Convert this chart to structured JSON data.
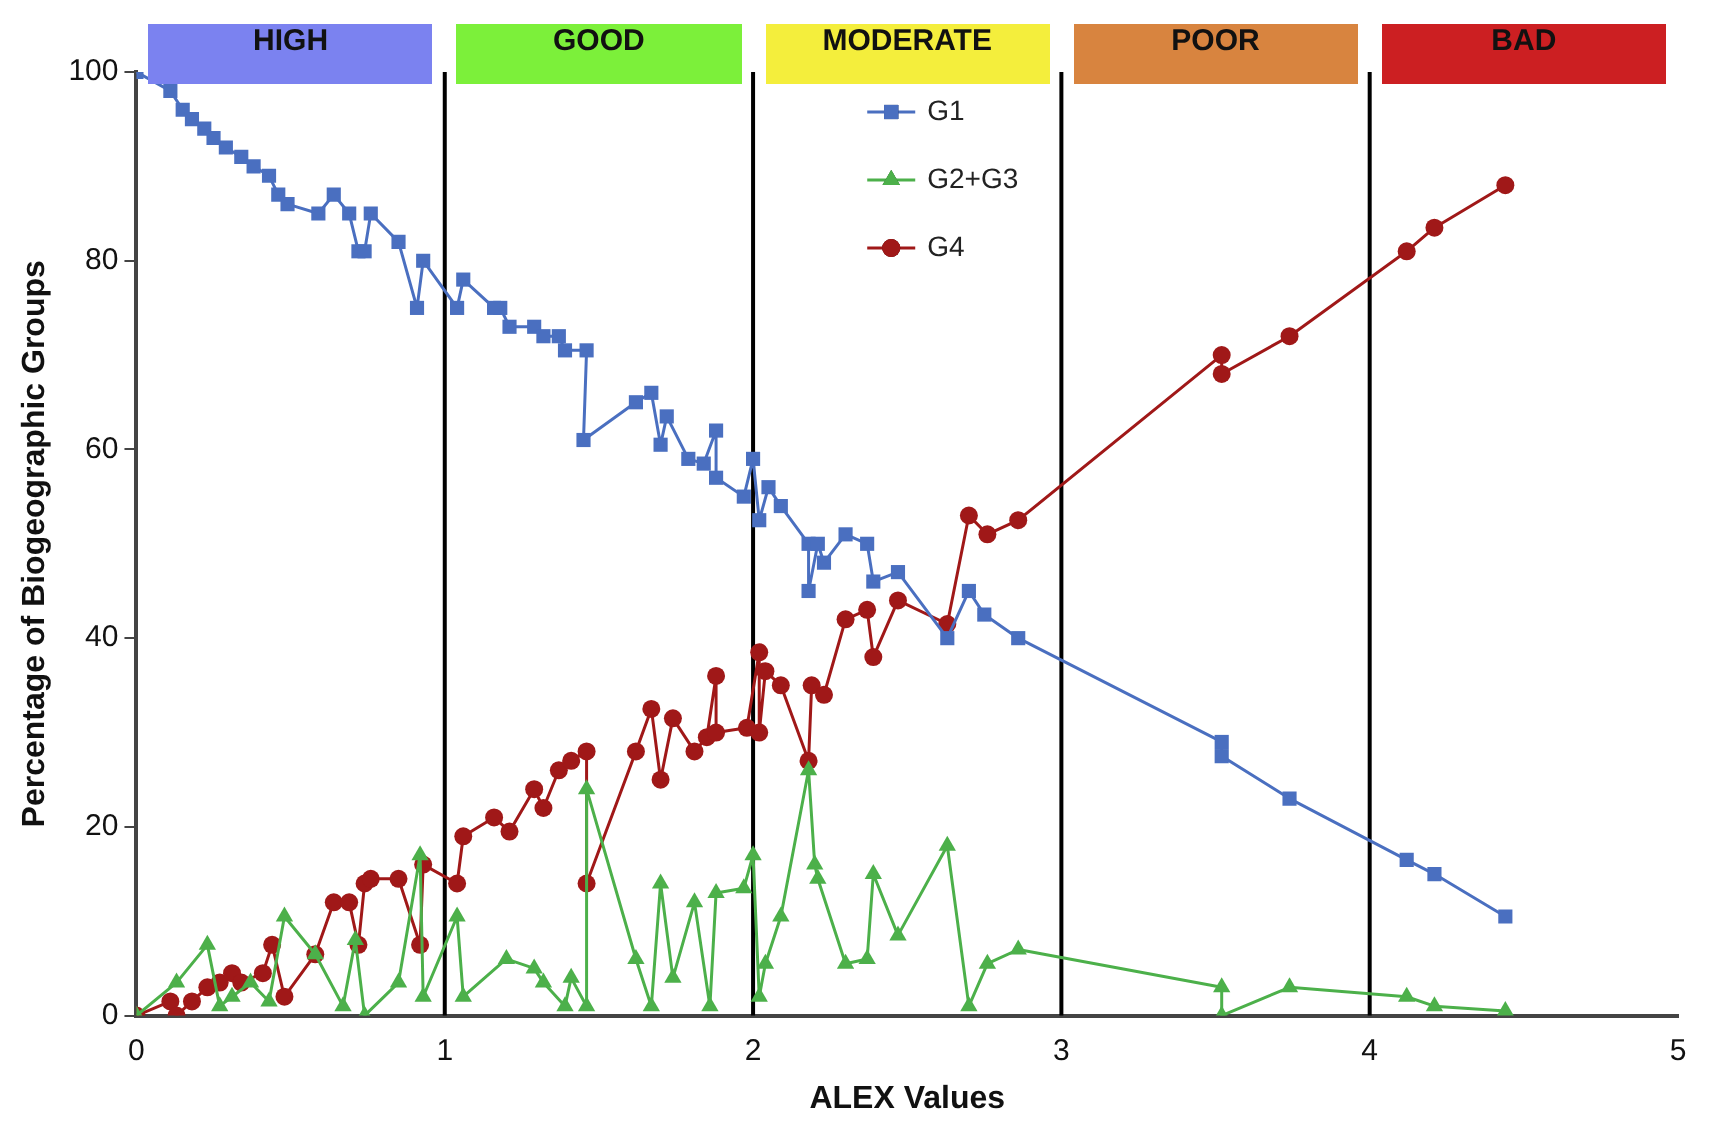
{
  "chart_data": {
    "type": "line",
    "xlabel": "ALEX Values",
    "ylabel": "Percentage of Biogeographic Groups",
    "xlim": [
      0,
      5
    ],
    "xticks": [
      0,
      1,
      2,
      3,
      4,
      5
    ],
    "ylim": [
      0,
      100
    ],
    "yticks": [
      0,
      20,
      40,
      60,
      80,
      100
    ],
    "grid": false,
    "legend": "top",
    "line_style": "solid",
    "series": [
      {
        "name": "G1",
        "color": "#4a6fc0",
        "marker": "square",
        "x": [
          0,
          0.11,
          0.15,
          0.18,
          0.22,
          0.25,
          0.29,
          0.34,
          0.38,
          0.43,
          0.46,
          0.49,
          0.59,
          0.64,
          0.69,
          0.72,
          0.74,
          0.76,
          0.85,
          0.91,
          0.93,
          1.04,
          1.06,
          1.16,
          1.18,
          1.21,
          1.29,
          1.32,
          1.37,
          1.39,
          1.46,
          1.45,
          1.62,
          1.67,
          1.7,
          1.72,
          1.79,
          1.84,
          1.88,
          1.88,
          1.97,
          2.0,
          2.02,
          2.05,
          2.09,
          2.18,
          2.18,
          2.21,
          2.23,
          2.3,
          2.37,
          2.39,
          2.47,
          2.63,
          2.7,
          2.75,
          2.86,
          3.52,
          3.52,
          3.74,
          4.12,
          4.21,
          4.44
        ],
        "values": [
          100,
          98,
          96,
          95,
          94,
          93,
          92,
          91,
          90,
          89,
          87,
          86,
          85,
          87,
          85,
          81,
          81,
          85,
          82,
          75,
          80,
          75,
          78,
          75,
          75,
          73,
          73,
          72,
          72,
          70.5,
          70.5,
          61,
          65,
          66,
          60.5,
          63.5,
          59,
          58.5,
          62,
          57,
          55,
          59,
          52.5,
          56,
          54,
          50,
          45,
          50,
          48,
          51,
          50,
          46,
          47,
          40,
          45,
          42.5,
          40,
          29,
          27.5,
          23,
          16.5,
          15,
          10.5
        ]
      },
      {
        "name": "G2+G3",
        "color": "#4cb04a",
        "marker": "triangle",
        "x": [
          0,
          0.13,
          0.23,
          0.27,
          0.31,
          0.37,
          0.43,
          0.48,
          0.58,
          0.67,
          0.71,
          0.74,
          0.85,
          0.92,
          0.93,
          1.04,
          1.06,
          1.2,
          1.29,
          1.32,
          1.39,
          1.41,
          1.46,
          1.46,
          1.62,
          1.67,
          1.7,
          1.74,
          1.81,
          1.86,
          1.88,
          1.97,
          2.0,
          2.02,
          2.04,
          2.09,
          2.18,
          2.2,
          2.21,
          2.3,
          2.37,
          2.39,
          2.47,
          2.63,
          2.7,
          2.76,
          2.86,
          3.52,
          3.52,
          3.74,
          4.12,
          4.21,
          4.44
        ],
        "values": [
          0,
          3.5,
          7.5,
          1,
          2,
          3.5,
          1.5,
          10.5,
          6.5,
          1,
          8,
          0,
          3.5,
          17,
          2,
          10.5,
          2,
          6,
          5,
          3.5,
          1,
          4,
          1,
          24,
          6,
          1,
          14,
          4,
          12,
          1,
          13,
          13.5,
          17,
          2,
          5.5,
          10.5,
          26,
          16,
          14.5,
          5.5,
          6,
          15,
          8.5,
          18,
          1,
          5.5,
          7,
          3,
          0,
          3,
          2,
          1,
          0.5
        ]
      },
      {
        "name": "G4",
        "color": "#a01818",
        "marker": "circle",
        "x": [
          0,
          0.11,
          0.13,
          0.18,
          0.23,
          0.27,
          0.31,
          0.34,
          0.41,
          0.44,
          0.48,
          0.58,
          0.64,
          0.69,
          0.72,
          0.74,
          0.76,
          0.85,
          0.92,
          0.93,
          1.04,
          1.06,
          1.16,
          1.21,
          1.29,
          1.32,
          1.37,
          1.41,
          1.46,
          1.46,
          1.62,
          1.67,
          1.7,
          1.74,
          1.81,
          1.85,
          1.88,
          1.88,
          1.98,
          2.02,
          2.02,
          2.04,
          2.09,
          2.18,
          2.19,
          2.23,
          2.3,
          2.37,
          2.39,
          2.47,
          2.63,
          2.7,
          2.76,
          2.86,
          3.52,
          3.52,
          3.74,
          4.12,
          4.21,
          4.44
        ],
        "values": [
          0,
          1.5,
          0,
          1.5,
          3,
          3.5,
          4.5,
          3.5,
          4.5,
          7.5,
          2,
          6.5,
          12,
          12,
          7.5,
          14,
          14.5,
          14.5,
          7.5,
          16,
          14,
          19,
          21,
          19.5,
          24,
          22,
          26,
          27,
          28,
          14,
          28,
          32.5,
          25,
          31.5,
          28,
          29.5,
          36,
          30,
          30.5,
          38.5,
          30,
          36.5,
          35,
          27,
          35,
          34,
          42,
          43,
          38,
          44,
          41.5,
          53,
          51,
          52.5,
          70,
          68,
          72,
          81,
          83.5,
          88
        ]
      }
    ],
    "ref_lines": [
      {
        "axis": "x",
        "value": 1,
        "color": "#000000"
      },
      {
        "axis": "x",
        "value": 2,
        "color": "#000000"
      },
      {
        "axis": "x",
        "value": 3,
        "color": "#000000"
      },
      {
        "axis": "x",
        "value": 4,
        "color": "#000000"
      }
    ],
    "annotations": [
      "HIGH",
      "GOOD",
      "MODERATE",
      "POOR",
      "BAD"
    ]
  }
}
